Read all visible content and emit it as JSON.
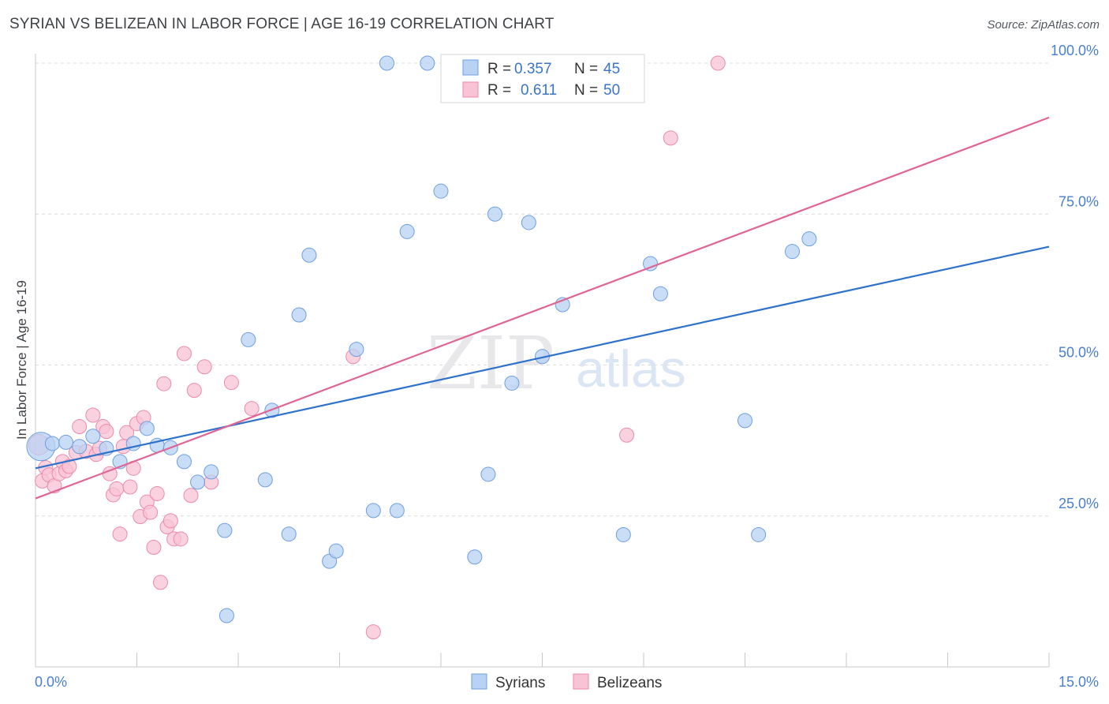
{
  "header": {
    "title": "SYRIAN VS BELIZEAN IN LABOR FORCE | AGE 16-19 CORRELATION CHART",
    "source": "Source: ZipAtlas.com"
  },
  "watermark": {
    "zip": "ZIP",
    "atlas": "atlas"
  },
  "colors": {
    "syrian_fill": "#b8d2f4",
    "syrian_stroke": "#6e9fe0",
    "syrian_line": "#2f72cc",
    "belizean_fill": "#f8c3d4",
    "belizean_stroke": "#ec8aad",
    "belizean_line": "#e06594",
    "grid": "#dcdcdc",
    "tick_label": "#4a7fcf"
  },
  "legend": {
    "rows": [
      {
        "r_label": "R =",
        "r_value": "0.357",
        "n_label": "N =",
        "n_value": "45"
      },
      {
        "r_label": "R =",
        "r_value": "0.611",
        "n_label": "N =",
        "n_value": "50"
      }
    ]
  },
  "chart_data": {
    "type": "scatter",
    "title": "SYRIAN VS BELIZEAN IN LABOR FORCE | AGE 16-19 CORRELATION CHART",
    "xlabel": "",
    "ylabel": "In Labor Force | Age 16-19",
    "xlim": [
      0,
      15
    ],
    "ylim": [
      0,
      100
    ],
    "x_tick_labels": [
      "0.0%",
      "15.0%"
    ],
    "y_ticks": [
      25,
      50,
      75,
      100
    ],
    "y_tick_labels": [
      "25.0%",
      "50.0%",
      "75.0%",
      "100.0%"
    ],
    "grid": true,
    "legend_position": "top-center",
    "series": [
      {
        "name": "Syrians",
        "trend": {
          "x": [
            0,
            15
          ],
          "y": [
            32.9,
            69.6
          ]
        },
        "points": [
          [
            0.08,
            36.5,
            18
          ],
          [
            0.25,
            37.0,
            9
          ],
          [
            0.45,
            37.2,
            9
          ],
          [
            0.65,
            36.5,
            9
          ],
          [
            0.85,
            38.2,
            9
          ],
          [
            1.05,
            36.2,
            9
          ],
          [
            1.25,
            34.0,
            9
          ],
          [
            1.45,
            37.0,
            9
          ],
          [
            1.65,
            39.5,
            9
          ],
          [
            1.8,
            36.7,
            9
          ],
          [
            2.0,
            36.3,
            9
          ],
          [
            2.2,
            34.0,
            9
          ],
          [
            2.4,
            30.6,
            9
          ],
          [
            2.6,
            32.3,
            9
          ],
          [
            2.8,
            22.6,
            9
          ],
          [
            2.83,
            8.5,
            9
          ],
          [
            3.15,
            54.2,
            9
          ],
          [
            3.4,
            31.0,
            9
          ],
          [
            3.5,
            42.5,
            9
          ],
          [
            3.75,
            22.0,
            9
          ],
          [
            3.9,
            58.3,
            9
          ],
          [
            4.05,
            68.2,
            9
          ],
          [
            4.35,
            17.5,
            9
          ],
          [
            4.45,
            19.2,
            9
          ],
          [
            4.75,
            52.6,
            9
          ],
          [
            5.0,
            25.9,
            9
          ],
          [
            5.2,
            100.0,
            9
          ],
          [
            5.35,
            25.9,
            9
          ],
          [
            5.5,
            72.1,
            9
          ],
          [
            5.8,
            100.0,
            9
          ],
          [
            6.0,
            78.8,
            9
          ],
          [
            6.5,
            18.2,
            9
          ],
          [
            6.7,
            31.9,
            9
          ],
          [
            6.8,
            75.0,
            9
          ],
          [
            7.05,
            47.0,
            9
          ],
          [
            7.3,
            73.6,
            9
          ],
          [
            7.5,
            51.4,
            9
          ],
          [
            7.8,
            60.0,
            9
          ],
          [
            8.7,
            21.9,
            9
          ],
          [
            9.1,
            66.8,
            9
          ],
          [
            9.25,
            61.8,
            9
          ],
          [
            10.5,
            40.8,
            9
          ],
          [
            10.7,
            21.9,
            9
          ],
          [
            11.2,
            68.8,
            9
          ],
          [
            11.45,
            70.9,
            9
          ]
        ]
      },
      {
        "name": "Belizeans",
        "trend": {
          "x": [
            0,
            15
          ],
          "y": [
            27.9,
            91.0
          ]
        },
        "points": [
          [
            0.05,
            36.8,
            13
          ],
          [
            0.1,
            30.8,
            9
          ],
          [
            0.15,
            33.0,
            9
          ],
          [
            0.2,
            31.8,
            9
          ],
          [
            0.28,
            30.0,
            9
          ],
          [
            0.35,
            32.0,
            9
          ],
          [
            0.4,
            34.0,
            9
          ],
          [
            0.45,
            32.5,
            9
          ],
          [
            0.5,
            33.2,
            9
          ],
          [
            0.6,
            35.5,
            9
          ],
          [
            0.65,
            39.8,
            9
          ],
          [
            0.75,
            35.7,
            9
          ],
          [
            0.85,
            41.7,
            9
          ],
          [
            0.9,
            35.2,
            9
          ],
          [
            0.95,
            36.2,
            9
          ],
          [
            1.0,
            39.8,
            9
          ],
          [
            1.05,
            39.0,
            9
          ],
          [
            1.1,
            32.0,
            9
          ],
          [
            1.15,
            28.5,
            9
          ],
          [
            1.2,
            29.5,
            9
          ],
          [
            1.25,
            22.0,
            9
          ],
          [
            1.3,
            36.5,
            9
          ],
          [
            1.35,
            38.8,
            9
          ],
          [
            1.4,
            29.8,
            9
          ],
          [
            1.45,
            32.9,
            9
          ],
          [
            1.5,
            40.3,
            9
          ],
          [
            1.55,
            24.9,
            9
          ],
          [
            1.6,
            41.3,
            9
          ],
          [
            1.65,
            27.3,
            9
          ],
          [
            1.7,
            25.6,
            9
          ],
          [
            1.75,
            19.8,
            9
          ],
          [
            1.8,
            28.7,
            9
          ],
          [
            1.85,
            14.0,
            9
          ],
          [
            1.9,
            46.9,
            9
          ],
          [
            1.95,
            23.2,
            9
          ],
          [
            2.0,
            24.2,
            9
          ],
          [
            2.05,
            21.2,
            9
          ],
          [
            2.15,
            21.2,
            9
          ],
          [
            2.2,
            51.9,
            9
          ],
          [
            2.3,
            28.4,
            9
          ],
          [
            2.35,
            45.8,
            9
          ],
          [
            2.5,
            49.7,
            9
          ],
          [
            2.6,
            30.6,
            9
          ],
          [
            2.9,
            47.1,
            9
          ],
          [
            3.2,
            42.8,
            9
          ],
          [
            4.7,
            51.4,
            9
          ],
          [
            5.0,
            5.8,
            9
          ],
          [
            8.75,
            38.4,
            9
          ],
          [
            9.4,
            87.6,
            9
          ],
          [
            10.1,
            100.0,
            9
          ]
        ]
      }
    ]
  },
  "bottom_legend": {
    "items": [
      "Syrians",
      "Belizeans"
    ]
  }
}
